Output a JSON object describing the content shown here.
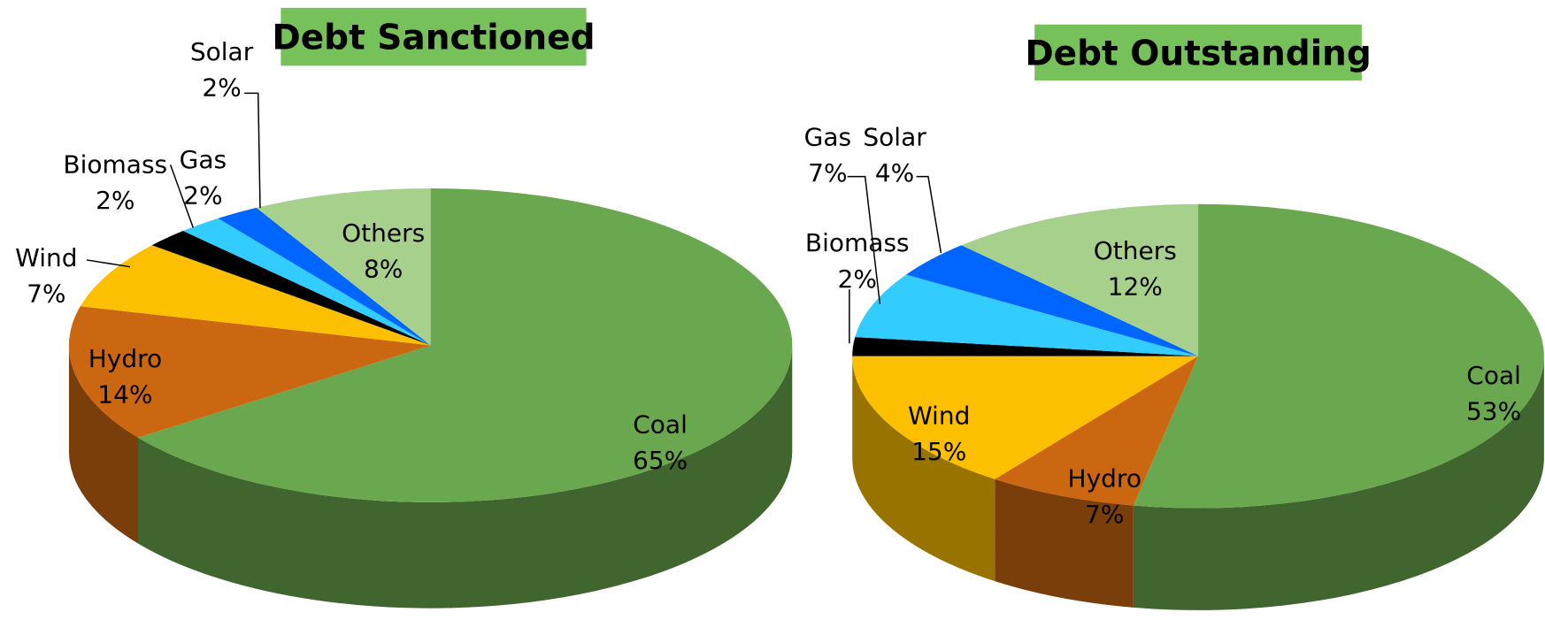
{
  "chart_data": [
    {
      "type": "pie3d",
      "title": "Debt Sanctioned",
      "categories": [
        "Coal",
        "Hydro",
        "Wind",
        "Biomass",
        "Gas",
        "Solar",
        "Others"
      ],
      "values": [
        65,
        14,
        7,
        2,
        2,
        2,
        8
      ],
      "value_labels": [
        "65%",
        "14%",
        "7%",
        "2%",
        "2%",
        "2%",
        "8%"
      ],
      "colors": [
        "#6aa84f",
        "#cc6711",
        "#fdc000",
        "#000000",
        "#33ccff",
        "#0066ff",
        "#a8d08d"
      ],
      "title_color": "#77c15a"
    },
    {
      "type": "pie3d",
      "title": "Debt Outstanding",
      "categories": [
        "Coal",
        "Hydro",
        "Wind",
        "Biomass",
        "Gas",
        "Solar",
        "Others"
      ],
      "values": [
        53,
        7,
        15,
        2,
        7,
        4,
        12
      ],
      "value_labels": [
        "53%",
        "7%",
        "15%",
        "2%",
        "7%",
        "4%",
        "12%"
      ],
      "colors": [
        "#6aa84f",
        "#cc6711",
        "#fdc000",
        "#000000",
        "#33ccff",
        "#0066ff",
        "#a8d08d"
      ],
      "title_color": "#77c15a"
    }
  ]
}
